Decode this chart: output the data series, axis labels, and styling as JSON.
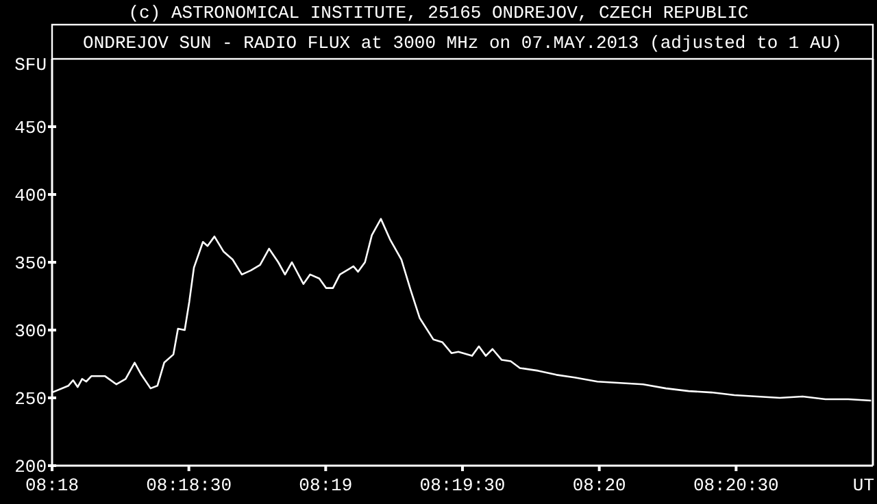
{
  "chart_data": {
    "type": "line",
    "title": "(c) ASTRONOMICAL INSTITUTE, 25165 ONDREJOV, CZECH REPUBLIC",
    "subtitle": "ONDREJOV SUN - RADIO FLUX at 3000 MHz on 07.MAY.2013 (adjusted to 1 AU)",
    "xlabel": "UT",
    "ylabel": "SFU",
    "xlim": [
      8.3,
      8.35
    ],
    "ylim": [
      200,
      500
    ],
    "xticks": [
      {
        "value": 8.3,
        "label": "08:18"
      },
      {
        "value": 8.308333,
        "label": "08:18:30"
      },
      {
        "value": 8.316667,
        "label": "08:19"
      },
      {
        "value": 8.325,
        "label": "08:19:30"
      },
      {
        "value": 8.333333,
        "label": "08:20"
      },
      {
        "value": 8.341667,
        "label": "08:20:30"
      }
    ],
    "yticks": [
      200,
      250,
      300,
      350,
      400,
      450
    ],
    "grid": false,
    "marker": "none",
    "line_style": "solid",
    "series": [
      {
        "color": "#ffffff",
        "x": [
          8.3,
          8.301,
          8.30128,
          8.30156,
          8.30183,
          8.30208,
          8.30239,
          8.30323,
          8.30392,
          8.30448,
          8.30503,
          8.30544,
          8.306,
          8.30642,
          8.30683,
          8.30739,
          8.30767,
          8.30808,
          8.30836,
          8.30864,
          8.30919,
          8.30947,
          8.30989,
          8.31044,
          8.311,
          8.31156,
          8.31211,
          8.31267,
          8.31322,
          8.31378,
          8.31419,
          8.31461,
          8.31531,
          8.31572,
          8.31628,
          8.31669,
          8.31711,
          8.31753,
          8.31836,
          8.31864,
          8.31906,
          8.31948,
          8.32003,
          8.32058,
          8.32128,
          8.32183,
          8.32239,
          8.32323,
          8.32378,
          8.32433,
          8.32475,
          8.32558,
          8.326,
          8.32642,
          8.32683,
          8.32739,
          8.32794,
          8.3285,
          8.32961,
          8.33072,
          8.33183,
          8.33322,
          8.33461,
          8.336,
          8.33739,
          8.33878,
          8.34017,
          8.34156,
          8.34294,
          8.34433,
          8.34572,
          8.34711,
          8.3485,
          8.34989
        ],
        "values": [
          254,
          259,
          263,
          258,
          264,
          262,
          266,
          266,
          260,
          264,
          276,
          267,
          257,
          259,
          276,
          282,
          301,
          300,
          321,
          346,
          365,
          362,
          369,
          358,
          352,
          341,
          344,
          348,
          360,
          350,
          341,
          350,
          334,
          341,
          338,
          331,
          331,
          341,
          347,
          343,
          350,
          370,
          382,
          367,
          352,
          330,
          309,
          293,
          291,
          283,
          284,
          281,
          288,
          281,
          286,
          278,
          277,
          272,
          270,
          267,
          265,
          262,
          261,
          260,
          257,
          255,
          254,
          252,
          251,
          250,
          251,
          249,
          249,
          248
        ]
      }
    ]
  }
}
